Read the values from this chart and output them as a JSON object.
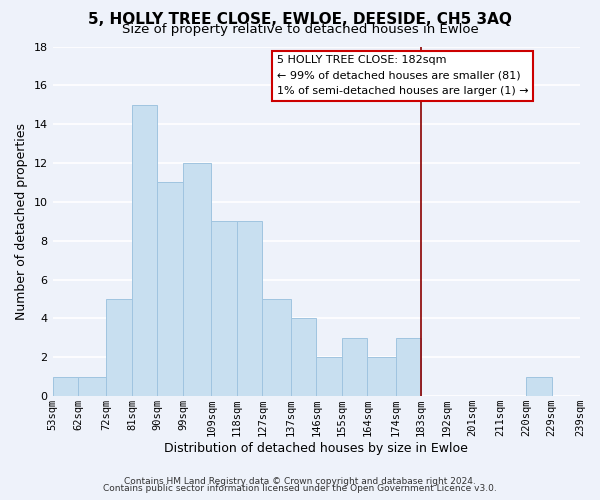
{
  "title": "5, HOLLY TREE CLOSE, EWLOE, DEESIDE, CH5 3AQ",
  "subtitle": "Size of property relative to detached houses in Ewloe",
  "xlabel": "Distribution of detached houses by size in Ewloe",
  "ylabel": "Number of detached properties",
  "bar_color": "#c8dff0",
  "bar_edge_color": "#a0c4e0",
  "background_color": "#eef2fa",
  "plot_bg_color": "#eef2fa",
  "grid_color": "#ffffff",
  "bins": [
    53,
    62,
    72,
    81,
    90,
    99,
    109,
    118,
    127,
    137,
    146,
    155,
    164,
    174,
    183,
    192,
    201,
    211,
    220,
    229,
    239
  ],
  "counts": [
    1,
    1,
    5,
    15,
    11,
    12,
    9,
    9,
    5,
    4,
    2,
    3,
    2,
    3,
    0,
    0,
    0,
    0,
    1,
    0
  ],
  "tick_labels": [
    "53sqm",
    "62sqm",
    "72sqm",
    "81sqm",
    "90sqm",
    "99sqm",
    "109sqm",
    "118sqm",
    "127sqm",
    "137sqm",
    "146sqm",
    "155sqm",
    "164sqm",
    "174sqm",
    "183sqm",
    "192sqm",
    "201sqm",
    "211sqm",
    "220sqm",
    "229sqm",
    "239sqm"
  ],
  "vline_x": 183,
  "vline_color": "#8b0000",
  "annotation_box_title": "5 HOLLY TREE CLOSE: 182sqm",
  "annotation_line1": "← 99% of detached houses are smaller (81)",
  "annotation_line2": "1% of semi-detached houses are larger (1) →",
  "annotation_box_color": "white",
  "annotation_box_edge": "#cc0000",
  "ylim": [
    0,
    18
  ],
  "yticks": [
    0,
    2,
    4,
    6,
    8,
    10,
    12,
    14,
    16,
    18
  ],
  "footer1": "Contains HM Land Registry data © Crown copyright and database right 2024.",
  "footer2": "Contains public sector information licensed under the Open Government Licence v3.0.",
  "title_fontsize": 11,
  "subtitle_fontsize": 9.5,
  "tick_fontsize": 7.5,
  "ylabel_fontsize": 9,
  "xlabel_fontsize": 9,
  "annotation_fontsize": 8,
  "footer_fontsize": 6.5
}
